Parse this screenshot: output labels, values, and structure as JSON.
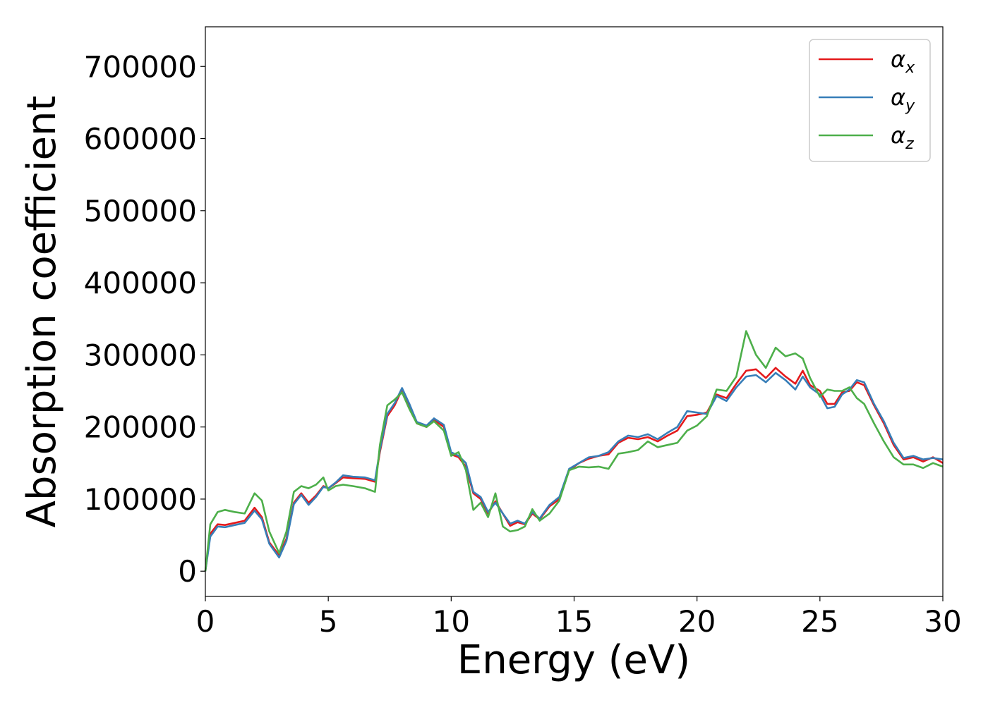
{
  "chart_data": {
    "type": "line",
    "title": "",
    "xlabel": "Energy (eV)",
    "ylabel": "Absorption coefficient",
    "xlim": [
      0,
      30
    ],
    "ylim": [
      -35000,
      755000
    ],
    "xticks": [
      0,
      5,
      10,
      15,
      20,
      25,
      30
    ],
    "yticks": [
      0,
      100000,
      200000,
      300000,
      400000,
      500000,
      600000,
      700000
    ],
    "grid": false,
    "legend_position": "top-right",
    "series": [
      {
        "name": "α",
        "subscript": "x",
        "color": "#e41a1c",
        "x": [
          0,
          0.2,
          0.5,
          0.8,
          1.2,
          1.6,
          2.0,
          2.3,
          2.6,
          3.0,
          3.3,
          3.6,
          3.9,
          4.2,
          4.5,
          4.8,
          5.0,
          5.3,
          5.6,
          6.0,
          6.5,
          6.9,
          7.1,
          7.4,
          7.7,
          8.0,
          8.3,
          8.6,
          9.0,
          9.3,
          9.7,
          10.0,
          10.3,
          10.6,
          10.9,
          11.2,
          11.5,
          11.8,
          12.1,
          12.4,
          12.7,
          13.0,
          13.3,
          13.6,
          14.0,
          14.4,
          14.8,
          15.2,
          15.6,
          16.0,
          16.4,
          16.8,
          17.2,
          17.6,
          18.0,
          18.4,
          18.8,
          19.2,
          19.6,
          20.0,
          20.4,
          20.8,
          21.2,
          21.6,
          22.0,
          22.4,
          22.8,
          23.2,
          23.6,
          24.0,
          24.3,
          24.6,
          25.0,
          25.3,
          25.6,
          25.9,
          26.2,
          26.5,
          26.8,
          27.2,
          27.6,
          28.0,
          28.4,
          28.8,
          29.2,
          29.6,
          30.0
        ],
        "values": [
          0,
          52000,
          65000,
          64000,
          67000,
          70000,
          88000,
          75000,
          40000,
          22000,
          45000,
          95000,
          108000,
          95000,
          105000,
          118000,
          115000,
          122000,
          130000,
          129000,
          128000,
          124000,
          165000,
          215000,
          230000,
          252000,
          230000,
          205000,
          200000,
          210000,
          200000,
          162000,
          158000,
          145000,
          108000,
          100000,
          80000,
          97000,
          80000,
          63000,
          68000,
          65000,
          80000,
          72000,
          90000,
          100000,
          140000,
          150000,
          156000,
          160000,
          162000,
          178000,
          185000,
          183000,
          186000,
          180000,
          188000,
          195000,
          215000,
          217000,
          220000,
          245000,
          240000,
          260000,
          278000,
          280000,
          268000,
          282000,
          270000,
          260000,
          278000,
          258000,
          250000,
          232000,
          232000,
          248000,
          250000,
          262000,
          258000,
          230000,
          205000,
          175000,
          155000,
          158000,
          152000,
          158000,
          150000
        ]
      },
      {
        "name": "α",
        "subscript": "y",
        "color": "#377eb8",
        "x": [
          0,
          0.2,
          0.5,
          0.8,
          1.2,
          1.6,
          2.0,
          2.3,
          2.6,
          3.0,
          3.3,
          3.6,
          3.9,
          4.2,
          4.5,
          4.8,
          5.0,
          5.3,
          5.6,
          6.0,
          6.5,
          6.9,
          7.1,
          7.4,
          7.7,
          8.0,
          8.3,
          8.6,
          9.0,
          9.3,
          9.7,
          10.0,
          10.3,
          10.6,
          10.9,
          11.2,
          11.5,
          11.8,
          12.1,
          12.4,
          12.7,
          13.0,
          13.3,
          13.6,
          14.0,
          14.4,
          14.8,
          15.2,
          15.6,
          16.0,
          16.4,
          16.8,
          17.2,
          17.6,
          18.0,
          18.4,
          18.8,
          19.2,
          19.6,
          20.0,
          20.4,
          20.8,
          21.2,
          21.6,
          22.0,
          22.4,
          22.8,
          23.2,
          23.6,
          24.0,
          24.3,
          24.6,
          25.0,
          25.3,
          25.6,
          25.9,
          26.2,
          26.5,
          26.8,
          27.2,
          27.6,
          28.0,
          28.4,
          28.8,
          29.2,
          29.6,
          30.0
        ],
        "values": [
          0,
          48000,
          62000,
          61000,
          64000,
          67000,
          84000,
          72000,
          38000,
          19000,
          42000,
          93000,
          106000,
          92000,
          103000,
          117000,
          115000,
          123000,
          133000,
          131000,
          130000,
          126000,
          168000,
          218000,
          233000,
          254000,
          232000,
          207000,
          202000,
          212000,
          203000,
          165000,
          160000,
          150000,
          110000,
          103000,
          82000,
          95000,
          80000,
          66000,
          70000,
          66000,
          82000,
          73000,
          92000,
          103000,
          142000,
          150000,
          158000,
          160000,
          165000,
          180000,
          188000,
          186000,
          190000,
          183000,
          192000,
          200000,
          222000,
          220000,
          218000,
          243000,
          236000,
          255000,
          270000,
          272000,
          262000,
          275000,
          265000,
          252000,
          270000,
          255000,
          245000,
          226000,
          228000,
          245000,
          252000,
          265000,
          262000,
          232000,
          208000,
          178000,
          157000,
          160000,
          155000,
          157000,
          155000
        ]
      },
      {
        "name": "α",
        "subscript": "z",
        "color": "#4daf4a",
        "x": [
          0,
          0.2,
          0.5,
          0.8,
          1.2,
          1.6,
          2.0,
          2.3,
          2.6,
          3.0,
          3.3,
          3.6,
          3.9,
          4.2,
          4.5,
          4.8,
          5.0,
          5.3,
          5.6,
          6.0,
          6.5,
          6.9,
          7.1,
          7.4,
          7.7,
          8.0,
          8.3,
          8.6,
          9.0,
          9.3,
          9.7,
          10.0,
          10.3,
          10.6,
          10.9,
          11.2,
          11.5,
          11.8,
          12.1,
          12.4,
          12.7,
          13.0,
          13.3,
          13.6,
          14.0,
          14.4,
          14.8,
          15.2,
          15.6,
          16.0,
          16.4,
          16.8,
          17.2,
          17.6,
          18.0,
          18.4,
          18.8,
          19.2,
          19.6,
          20.0,
          20.4,
          20.8,
          21.2,
          21.6,
          22.0,
          22.4,
          22.8,
          23.2,
          23.6,
          24.0,
          24.3,
          24.6,
          25.0,
          25.3,
          25.6,
          25.9,
          26.2,
          26.5,
          26.8,
          27.2,
          27.6,
          28.0,
          28.4,
          28.8,
          29.2,
          29.6,
          30.0
        ],
        "values": [
          0,
          65000,
          82000,
          85000,
          82000,
          80000,
          108000,
          98000,
          55000,
          25000,
          55000,
          110000,
          118000,
          115000,
          120000,
          130000,
          112000,
          118000,
          120000,
          118000,
          115000,
          110000,
          175000,
          230000,
          238000,
          248000,
          225000,
          205000,
          200000,
          208000,
          195000,
          160000,
          165000,
          140000,
          85000,
          95000,
          75000,
          108000,
          62000,
          55000,
          57000,
          62000,
          86000,
          70000,
          80000,
          98000,
          140000,
          145000,
          144000,
          145000,
          142000,
          163000,
          165000,
          168000,
          180000,
          172000,
          175000,
          178000,
          195000,
          202000,
          215000,
          252000,
          250000,
          270000,
          333000,
          300000,
          282000,
          310000,
          298000,
          302000,
          295000,
          268000,
          242000,
          252000,
          250000,
          250000,
          255000,
          240000,
          232000,
          205000,
          180000,
          158000,
          148000,
          148000,
          143000,
          150000,
          145000
        ]
      }
    ]
  }
}
